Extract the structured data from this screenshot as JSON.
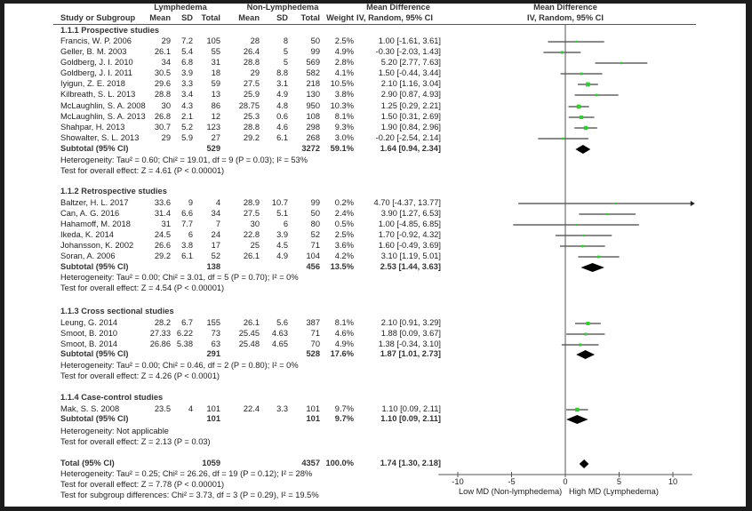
{
  "headers": {
    "group1": "Lymphedema",
    "group2": "Non-Lymphedema",
    "md_col_title": "Mean Difference",
    "md_col_sub": "IV, Random, 95% CI",
    "plot_title": "Mean Difference",
    "plot_sub": "IV, Random, 95% CI",
    "study": "Study or Subgroup",
    "mean1": "Mean",
    "sd1": "SD",
    "total1": "Total",
    "mean2": "Mean",
    "sd2": "SD",
    "total2": "Total",
    "weight": "Weight"
  },
  "colors": {
    "square": "#33cc33",
    "line": "#444444",
    "diamond": "#000000",
    "frame": "#1c1c1c"
  },
  "chart_data": {
    "type": "forest",
    "title": "Mean Difference IV, Random, 95% CI",
    "xlabel_left": "Low MD (Non-lymphedema)",
    "xlabel_right": "High MD (Lymphedema)",
    "xlim": [
      -11.8,
      11.8
    ],
    "xticks": [
      "-10",
      "-5",
      "0",
      "5",
      "10"
    ],
    "xtick_values": [
      -10,
      -5,
      0,
      5,
      10
    ],
    "groups": [
      {
        "title": "1.1.1 Prospective studies",
        "studies": [
          {
            "name": "Francis, W. P. 2006",
            "m1": "29",
            "sd1": "7.2",
            "n1": "105",
            "m2": "28",
            "sd2": "8",
            "n2": "50",
            "weight": "2.5%",
            "ci_text": "1.00 [-1.61, 3.61]",
            "md": 1.0,
            "lo": -1.61,
            "hi": 3.61
          },
          {
            "name": "Geller, B. M. 2003",
            "m1": "26.1",
            "sd1": "5.4",
            "n1": "55",
            "m2": "26.4",
            "sd2": "5",
            "n2": "99",
            "weight": "4.9%",
            "ci_text": "-0.30 [-2.03, 1.43]",
            "md": -0.3,
            "lo": -2.03,
            "hi": 1.43
          },
          {
            "name": "Goldberg, J. I. 2010",
            "m1": "34",
            "sd1": "6.8",
            "n1": "31",
            "m2": "28.8",
            "sd2": "5",
            "n2": "569",
            "weight": "2.8%",
            "ci_text": "5.20 [2.77, 7.63]",
            "md": 5.2,
            "lo": 2.77,
            "hi": 7.63
          },
          {
            "name": "Goldberg, J. I. 2011",
            "m1": "30.5",
            "sd1": "3.9",
            "n1": "18",
            "m2": "29",
            "sd2": "8.8",
            "n2": "582",
            "weight": "4.1%",
            "ci_text": "1.50 [-0.44, 3.44]",
            "md": 1.5,
            "lo": -0.44,
            "hi": 3.44
          },
          {
            "name": "Iyigun, Z. E. 2018",
            "m1": "29.6",
            "sd1": "3.3",
            "n1": "59",
            "m2": "27.5",
            "sd2": "3.1",
            "n2": "218",
            "weight": "10.5%",
            "ci_text": "2.10 [1.16, 3.04]",
            "md": 2.1,
            "lo": 1.16,
            "hi": 3.04
          },
          {
            "name": "Kilbreath, S. L. 2013",
            "m1": "28.8",
            "sd1": "3.4",
            "n1": "13",
            "m2": "25.9",
            "sd2": "4.9",
            "n2": "130",
            "weight": "3.8%",
            "ci_text": "2.90 [0.87, 4.93]",
            "md": 2.9,
            "lo": 0.87,
            "hi": 4.93
          },
          {
            "name": "McLaughlin, S. A. 2008",
            "m1": "30",
            "sd1": "4.3",
            "n1": "86",
            "m2": "28.75",
            "sd2": "4.8",
            "n2": "950",
            "weight": "10.3%",
            "ci_text": "1.25 [0.29, 2.21]",
            "md": 1.25,
            "lo": 0.29,
            "hi": 2.21
          },
          {
            "name": "McLaughlin, S. A. 2013",
            "m1": "26.8",
            "sd1": "2.1",
            "n1": "12",
            "m2": "25.3",
            "sd2": "0.6",
            "n2": "108",
            "weight": "8.1%",
            "ci_text": "1.50 [0.31, 2.69]",
            "md": 1.5,
            "lo": 0.31,
            "hi": 2.69
          },
          {
            "name": "Shahpar, H. 2013",
            "m1": "30.7",
            "sd1": "5.2",
            "n1": "123",
            "m2": "28.8",
            "sd2": "4.6",
            "n2": "298",
            "weight": "9.3%",
            "ci_text": "1.90 [0.84, 2.96]",
            "md": 1.9,
            "lo": 0.84,
            "hi": 2.96
          },
          {
            "name": "Showalter, S. L. 2013",
            "m1": "29",
            "sd1": "5.9",
            "n1": "27",
            "m2": "29.2",
            "sd2": "6.1",
            "n2": "268",
            "weight": "3.0%",
            "ci_text": "-0.20 [-2.54, 2.14]",
            "md": -0.2,
            "lo": -2.54,
            "hi": 2.14
          }
        ],
        "subtotal": {
          "label": "Subtotal (95% CI)",
          "n1": "529",
          "n2": "3272",
          "weight": "59.1%",
          "ci_text": "1.64 [0.94, 2.34]",
          "md": 1.64,
          "lo": 0.94,
          "hi": 2.34
        },
        "heterogeneity": "Heterogeneity: Tau² = 0.60; Chi² = 19.01, df = 9 (P = 0.03); I² = 53%",
        "overall": "Test for overall effect: Z = 4.61 (P < 0.00001)"
      },
      {
        "title": "1.1.2 Retrospective studies",
        "studies": [
          {
            "name": "Baltzer, H. L. 2017",
            "m1": "33.6",
            "sd1": "9",
            "n1": "4",
            "m2": "28.9",
            "sd2": "10.7",
            "n2": "99",
            "weight": "0.2%",
            "ci_text": "4.70 [-4.37, 13.77]",
            "md": 4.7,
            "lo": -4.37,
            "hi": 13.77
          },
          {
            "name": "Can, A. G. 2016",
            "m1": "31.4",
            "sd1": "6.6",
            "n1": "34",
            "m2": "27.5",
            "sd2": "5.1",
            "n2": "50",
            "weight": "2.4%",
            "ci_text": "3.90 [1.27, 6.53]",
            "md": 3.9,
            "lo": 1.27,
            "hi": 6.53
          },
          {
            "name": "Hahamoff, M. 2018",
            "m1": "31",
            "sd1": "7.7",
            "n1": "7",
            "m2": "30",
            "sd2": "6",
            "n2": "80",
            "weight": "0.5%",
            "ci_text": "1.00 [-4.85, 6.85]",
            "md": 1.0,
            "lo": -4.85,
            "hi": 6.85
          },
          {
            "name": "Ikeda, K. 2014",
            "m1": "24.5",
            "sd1": "6",
            "n1": "24",
            "m2": "22.8",
            "sd2": "3.9",
            "n2": "52",
            "weight": "2.5%",
            "ci_text": "1.70 [-0.92, 4.32]",
            "md": 1.7,
            "lo": -0.92,
            "hi": 4.32
          },
          {
            "name": "Johansson, K. 2002",
            "m1": "26.6",
            "sd1": "3.8",
            "n1": "17",
            "m2": "25",
            "sd2": "4.5",
            "n2": "71",
            "weight": "3.6%",
            "ci_text": "1.60 [-0.49, 3.69]",
            "md": 1.6,
            "lo": -0.49,
            "hi": 3.69
          },
          {
            "name": "Soran, A. 2006",
            "m1": "29.2",
            "sd1": "6.1",
            "n1": "52",
            "m2": "26.1",
            "sd2": "4.9",
            "n2": "104",
            "weight": "4.2%",
            "ci_text": "3.10 [1.19, 5.01]",
            "md": 3.1,
            "lo": 1.19,
            "hi": 5.01
          }
        ],
        "subtotal": {
          "label": "Subtotal (95% CI)",
          "n1": "138",
          "n2": "456",
          "weight": "13.5%",
          "ci_text": "2.53 [1.44, 3.63]",
          "md": 2.53,
          "lo": 1.44,
          "hi": 3.63
        },
        "heterogeneity": "Heterogeneity: Tau² = 0.00; Chi² = 3.01, df = 5 (P = 0.70); I² = 0%",
        "overall": "Test for overall effect: Z = 4.54 (P < 0.00001)"
      },
      {
        "title": "1.1.3 Cross sectional studies",
        "studies": [
          {
            "name": "Leung, G. 2014",
            "m1": "28.2",
            "sd1": "6.7",
            "n1": "155",
            "m2": "26.1",
            "sd2": "5.6",
            "n2": "387",
            "weight": "8.1%",
            "ci_text": "2.10 [0.91, 3.29]",
            "md": 2.1,
            "lo": 0.91,
            "hi": 3.29
          },
          {
            "name": "Smoot, B. 2010",
            "m1": "27.33",
            "sd1": "6.22",
            "n1": "73",
            "m2": "25.45",
            "sd2": "4.63",
            "n2": "71",
            "weight": "4.6%",
            "ci_text": "1.88 [0.09, 3.67]",
            "md": 1.88,
            "lo": 0.09,
            "hi": 3.67
          },
          {
            "name": "Smoot, B. 2014",
            "m1": "26.86",
            "sd1": "5.38",
            "n1": "63",
            "m2": "25.48",
            "sd2": "4.65",
            "n2": "70",
            "weight": "4.9%",
            "ci_text": "1.38 [-0.34, 3.10]",
            "md": 1.38,
            "lo": -0.34,
            "hi": 3.1
          }
        ],
        "subtotal": {
          "label": "Subtotal (95% CI)",
          "n1": "291",
          "n2": "528",
          "weight": "17.6%",
          "ci_text": "1.87 [1.01, 2.73]",
          "md": 1.87,
          "lo": 1.01,
          "hi": 2.73
        },
        "heterogeneity": "Heterogeneity: Tau² = 0.00; Chi² = 0.46, df = 2 (P = 0.80); I² = 0%",
        "overall": "Test for overall effect: Z = 4.26 (P < 0.0001)"
      },
      {
        "title": "1.1.4 Case-control studies",
        "studies": [
          {
            "name": "Mak, S. S. 2008",
            "m1": "23.5",
            "sd1": "4",
            "n1": "101",
            "m2": "22.4",
            "sd2": "3.3",
            "n2": "101",
            "weight": "9.7%",
            "ci_text": "1.10 [0.09, 2.11]",
            "md": 1.1,
            "lo": 0.09,
            "hi": 2.11
          }
        ],
        "subtotal": {
          "label": "Subtotal (95% CI)",
          "n1": "101",
          "n2": "101",
          "weight": "9.7%",
          "ci_text": "1.10 [0.09, 2.11]",
          "md": 1.1,
          "lo": 0.09,
          "hi": 2.11
        },
        "heterogeneity": "Heterogeneity: Not applicable",
        "overall": "Test for overall effect: Z = 2.13 (P = 0.03)"
      }
    ],
    "total": {
      "label": "Total (95% CI)",
      "n1": "1059",
      "n2": "4357",
      "weight": "100.0%",
      "ci_text": "1.74 [1.30, 2.18]",
      "md": 1.74,
      "lo": 1.3,
      "hi": 2.18
    },
    "total_heterogeneity": "Heterogeneity: Tau² = 0.25; Chi² = 26.26, df = 19 (P = 0.12); I² = 28%",
    "total_overall": "Test for overall effect: Z = 7.78 (P < 0.00001)",
    "subgroup_diff": "Test for subgroup differences: Chi² = 3.73, df = 3 (P = 0.29), I² = 19.5%"
  }
}
